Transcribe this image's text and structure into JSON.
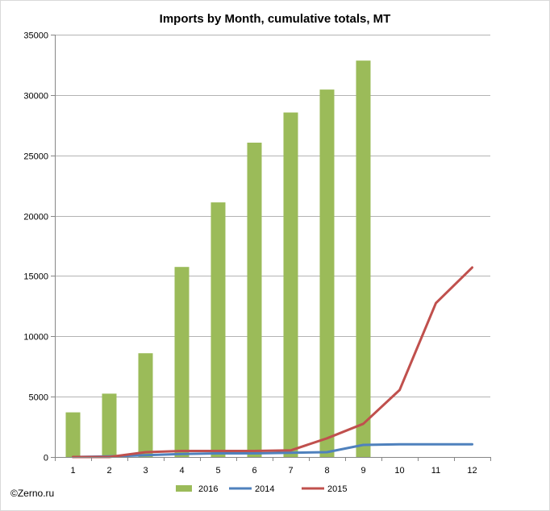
{
  "chart_data": {
    "type": "bar",
    "title": "Imports by Month, cumulative totals, MT",
    "categories": [
      "1",
      "2",
      "3",
      "4",
      "5",
      "6",
      "7",
      "8",
      "9",
      "10",
      "11",
      "12"
    ],
    "ylim": [
      0,
      35000
    ],
    "yticks": [
      0,
      5000,
      10000,
      15000,
      20000,
      25000,
      30000,
      35000
    ],
    "ytick_labels": [
      "0",
      "5000",
      "10000",
      "15000",
      "20000",
      "25000",
      "30000",
      "35000"
    ],
    "grid": true,
    "legend_position": "bottom",
    "series": [
      {
        "name": "2016",
        "kind": "bar",
        "color": "#9BBB59",
        "values": [
          3700,
          5250,
          8600,
          15750,
          21100,
          26050,
          28550,
          30450,
          32850,
          null,
          null,
          null
        ]
      },
      {
        "name": "2014",
        "kind": "line",
        "color": "#4F81BD",
        "values": [
          0,
          50,
          150,
          250,
          300,
          300,
          350,
          400,
          1000,
          1050,
          1050,
          1050
        ]
      },
      {
        "name": "2015",
        "kind": "line",
        "color": "#C0504D",
        "values": [
          0,
          0,
          400,
          500,
          500,
          500,
          550,
          1550,
          2750,
          5550,
          12750,
          15700
        ]
      }
    ]
  },
  "copyright": "©Zerno.ru"
}
